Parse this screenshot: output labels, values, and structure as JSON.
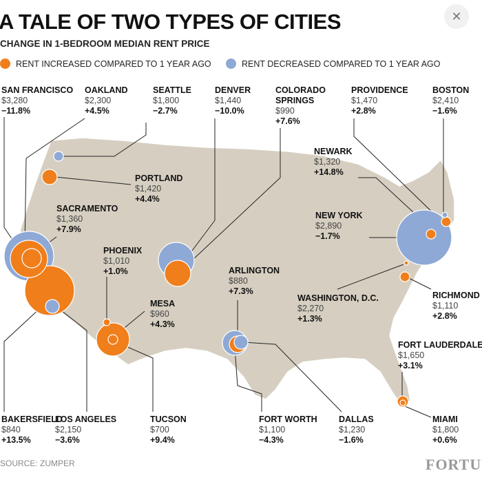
{
  "chart_data": {
    "type": "bubble-map",
    "title": "A TALE OF TWO TYPES OF CITIES",
    "subtitle": "CHANGE IN 1-BEDROOM MEDIAN RENT PRICE",
    "legend": [
      {
        "label": "RENT INCREASED COMPARED TO 1 YEAR AGO",
        "color": "#f07e1a"
      },
      {
        "label": "RENT DECREASED COMPARED TO 1 YEAR AGO",
        "color": "#8fa9d6"
      }
    ],
    "source": "SOURCE: ZUMPER",
    "brand": "FORTUNE",
    "cities": [
      {
        "name": "SAN FRANCISCO",
        "rent": "$3,280",
        "change": "−11.8%",
        "direction": "decrease"
      },
      {
        "name": "OAKLAND",
        "rent": "$2,300",
        "change": "+4.5%",
        "direction": "increase"
      },
      {
        "name": "SEATTLE",
        "rent": "$1,800",
        "change": "−2.7%",
        "direction": "decrease"
      },
      {
        "name": "DENVER",
        "rent": "$1,440",
        "change": "−10.0%",
        "direction": "decrease"
      },
      {
        "name": "COLORADO SPRINGS",
        "rent": "$990",
        "change": "+7.6%",
        "direction": "increase"
      },
      {
        "name": "PROVIDENCE",
        "rent": "$1,470",
        "change": "+2.8%",
        "direction": "increase"
      },
      {
        "name": "BOSTON",
        "rent": "$2,410",
        "change": "−1.6%",
        "direction": "decrease"
      },
      {
        "name": "PORTLAND",
        "rent": "$1,420",
        "change": "+4.4%",
        "direction": "increase"
      },
      {
        "name": "NEWARK",
        "rent": "$1,320",
        "change": "+14.8%",
        "direction": "increase"
      },
      {
        "name": "SACRAMENTO",
        "rent": "$1,360",
        "change": "+7.9%",
        "direction": "increase"
      },
      {
        "name": "NEW YORK",
        "rent": "$2,890",
        "change": "−1.7%",
        "direction": "decrease"
      },
      {
        "name": "PHOENIX",
        "rent": "$1,010",
        "change": "+1.0%",
        "direction": "increase"
      },
      {
        "name": "ARLINGTON",
        "rent": "$880",
        "change": "+7.3%",
        "direction": "increase"
      },
      {
        "name": "RICHMOND",
        "rent": "$1,110",
        "change": "+2.8%",
        "direction": "increase"
      },
      {
        "name": "WASHINGTON, D.C.",
        "rent": "$2,270",
        "change": "+1.3%",
        "direction": "increase"
      },
      {
        "name": "MESA",
        "rent": "$960",
        "change": "+4.3%",
        "direction": "increase"
      },
      {
        "name": "FORT LAUDERDALE",
        "rent": "$1,650",
        "change": "+3.1%",
        "direction": "increase"
      },
      {
        "name": "BAKERSFIELD",
        "rent": "$840",
        "change": "+13.5%",
        "direction": "increase"
      },
      {
        "name": "LOS ANGELES",
        "rent": "$2,150",
        "change": "−3.6%",
        "direction": "decrease"
      },
      {
        "name": "TUCSON",
        "rent": "$700",
        "change": "+9.4%",
        "direction": "increase"
      },
      {
        "name": "FORT WORTH",
        "rent": "$1,100",
        "change": "−4.3%",
        "direction": "decrease"
      },
      {
        "name": "DALLAS",
        "rent": "$1,230",
        "change": "−1.6%",
        "direction": "decrease"
      },
      {
        "name": "MIAMI",
        "rent": "$1,800",
        "change": "+0.6%",
        "direction": "increase"
      }
    ]
  }
}
